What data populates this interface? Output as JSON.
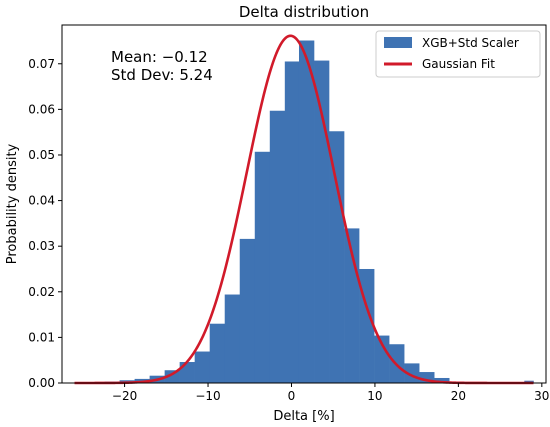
{
  "chart_data": {
    "type": "bar",
    "title": "Delta distribution",
    "xlabel": "Delta [%]",
    "ylabel": "Probability density",
    "xlim": [
      -27.5,
      30.5
    ],
    "ylim": [
      0,
      0.0785
    ],
    "x_ticks": [
      -20,
      -10,
      0,
      10,
      20,
      30
    ],
    "y_ticks": [
      0.0,
      0.01,
      0.02,
      0.03,
      0.04,
      0.05,
      0.06,
      0.07
    ],
    "grid": false,
    "legend_position": "top-right",
    "annotation": {
      "lines": [
        "Mean: −0.12",
        "Std Dev: 5.24"
      ],
      "color": "#5b0bf5"
    },
    "histogram": {
      "name": "XGB+Std Scaler",
      "color": "#3f73b3",
      "bins": [
        {
          "x0": -26.0,
          "x1": -24.2,
          "density": 0.0001
        },
        {
          "x0": -24.2,
          "x1": -22.4,
          "density": 0.0001
        },
        {
          "x0": -22.4,
          "x1": -20.6,
          "density": 0.0003
        },
        {
          "x0": -20.6,
          "x1": -18.8,
          "density": 0.0006
        },
        {
          "x0": -18.8,
          "x1": -17.0,
          "density": 0.0009
        },
        {
          "x0": -17.0,
          "x1": -15.2,
          "density": 0.0016
        },
        {
          "x0": -15.2,
          "x1": -13.4,
          "density": 0.0028
        },
        {
          "x0": -13.4,
          "x1": -11.6,
          "density": 0.0046
        },
        {
          "x0": -11.6,
          "x1": -9.8,
          "density": 0.0069
        },
        {
          "x0": -9.8,
          "x1": -8.0,
          "density": 0.013
        },
        {
          "x0": -8.0,
          "x1": -6.2,
          "density": 0.0194
        },
        {
          "x0": -6.2,
          "x1": -4.4,
          "density": 0.0316
        },
        {
          "x0": -4.4,
          "x1": -2.6,
          "density": 0.0507
        },
        {
          "x0": -2.6,
          "x1": -0.8,
          "density": 0.0597
        },
        {
          "x0": -0.8,
          "x1": 0.9,
          "density": 0.0705
        },
        {
          "x0": 0.9,
          "x1": 2.7,
          "density": 0.0751
        },
        {
          "x0": 2.7,
          "x1": 4.5,
          "density": 0.0707
        },
        {
          "x0": 4.5,
          "x1": 6.3,
          "density": 0.0552
        },
        {
          "x0": 6.3,
          "x1": 8.1,
          "density": 0.0339
        },
        {
          "x0": 8.1,
          "x1": 9.9,
          "density": 0.025
        },
        {
          "x0": 9.9,
          "x1": 11.7,
          "density": 0.0104
        },
        {
          "x0": 11.7,
          "x1": 13.5,
          "density": 0.0085
        },
        {
          "x0": 13.5,
          "x1": 15.3,
          "density": 0.0043
        },
        {
          "x0": 15.3,
          "x1": 17.1,
          "density": 0.0024
        },
        {
          "x0": 17.1,
          "x1": 18.9,
          "density": 0.0011
        },
        {
          "x0": 18.9,
          "x1": 20.7,
          "density": 0.0003
        },
        {
          "x0": 20.7,
          "x1": 22.5,
          "density": 0.0002
        },
        {
          "x0": 22.5,
          "x1": 24.3,
          "density": 0.0001
        },
        {
          "x0": 24.3,
          "x1": 26.1,
          "density": 0.0001
        },
        {
          "x0": 26.1,
          "x1": 27.9,
          "density": 0.0001
        },
        {
          "x0": 27.9,
          "x1": 29.0,
          "density": 0.0005
        }
      ]
    },
    "fit": {
      "name": "Gaussian Fit",
      "color": "#d11a2a",
      "mean": -0.12,
      "std": 5.24,
      "x_range": [
        -26,
        29
      ]
    }
  }
}
